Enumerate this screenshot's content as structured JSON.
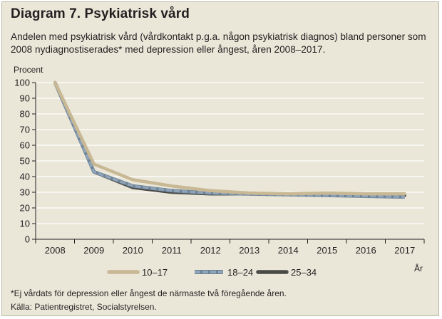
{
  "title": "Diagram 7. Psykiatrisk vård",
  "subtitle": "Andelen med psykiatrisk vård (vårdkontakt p.g.a. någon psykiatrisk diagnos) bland personer som 2008 nydiagnostiserades* med depression eller ångest, åren 2008–2017.",
  "footnote_1": "*Ej vårdats för depression eller ångest de närmaste två föregående åren.",
  "footnote_2": "Källa: Patientregistret, Socialstyrelsen.",
  "chart_data": {
    "type": "line",
    "ylabel": "Procent",
    "xlabel": "År",
    "ylim": [
      0,
      100
    ],
    "yticks": [
      0,
      10,
      20,
      30,
      40,
      50,
      60,
      70,
      80,
      90,
      100
    ],
    "x": [
      "2008",
      "2009",
      "2010",
      "2011",
      "2012",
      "2013",
      "2014",
      "2015",
      "2016",
      "2017"
    ],
    "grid": true,
    "legend_position": "bottom",
    "series": [
      {
        "name": "10–17",
        "color": "#c8b894",
        "values": [
          100,
          48,
          38,
          34,
          31,
          29.5,
          29,
          29.5,
          29,
          29
        ]
      },
      {
        "name": "18–24",
        "color": "#8fa3b8",
        "values": [
          100,
          43,
          34,
          31,
          29.5,
          29,
          28.5,
          28,
          27.5,
          27
        ]
      },
      {
        "name": "25–34",
        "color": "#4a4a46",
        "values": [
          100,
          43,
          33,
          30,
          29,
          29,
          28.5,
          28.5,
          28,
          28
        ]
      }
    ]
  }
}
